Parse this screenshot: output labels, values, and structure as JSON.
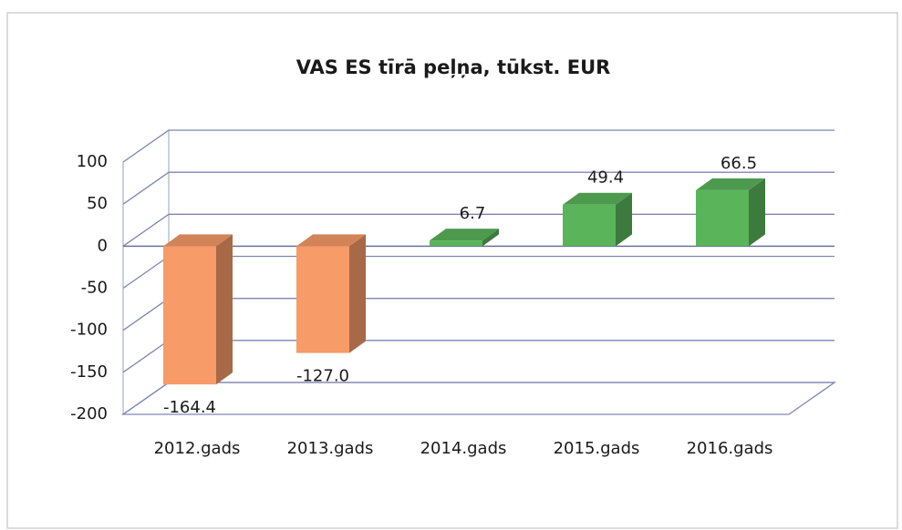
{
  "chart_data": {
    "type": "bar3d",
    "title": "VAS ES tīrā peļņa, tūkst. EUR",
    "categories": [
      "2012.gads",
      "2013.gads",
      "2014.gads",
      "2015.gads",
      "2016.gads"
    ],
    "values": [
      -164.4,
      -127.0,
      6.7,
      49.4,
      66.5
    ],
    "value_labels": [
      "-164.4",
      "-127.0",
      "6.7",
      "49.4",
      "66.5"
    ],
    "colors": [
      "#f79b68",
      "#f79b68",
      "#5ab45a",
      "#5ab45a",
      "#5ab45a"
    ],
    "ylim": [
      -200,
      100
    ],
    "yticks": [
      -200,
      -150,
      -100,
      -50,
      0,
      50,
      100
    ],
    "grid": true
  }
}
